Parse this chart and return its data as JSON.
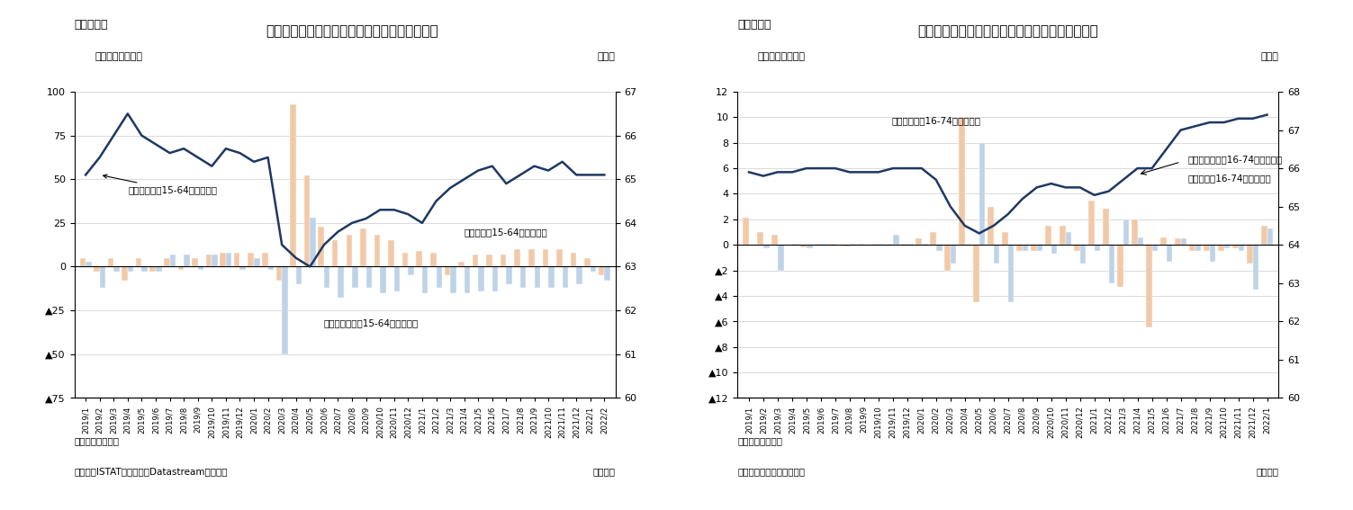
{
  "fig7": {
    "title": "イタリアの失業者・非労働力人口・労働参加率",
    "suptitle": "（図表７）",
    "ylabel_left": "（前月差、万人）",
    "ylabel_right": "（％）",
    "note1": "（注）季節調整値",
    "note2": "（資料）ISTATのデータをDatastreamより取得",
    "note3": "（月次）",
    "ylim_left": [
      -75,
      100
    ],
    "ylim_right": [
      60,
      67
    ],
    "yticks_left": [
      -75,
      -50,
      -25,
      0,
      25,
      50,
      75,
      100
    ],
    "yticks_right": [
      60,
      61,
      62,
      63,
      64,
      65,
      66,
      67
    ],
    "dates": [
      "2019/1",
      "2019/2",
      "2019/3",
      "2019/4",
      "2019/5",
      "2019/6",
      "2019/7",
      "2019/8",
      "2019/9",
      "2019/10",
      "2019/11",
      "2019/12",
      "2020/1",
      "2020/2",
      "2020/3",
      "2020/4",
      "2020/5",
      "2020/6",
      "2020/7",
      "2020/8",
      "2020/9",
      "2020/10",
      "2020/11",
      "2020/12",
      "2021/1",
      "2021/2",
      "2021/3",
      "2021/4",
      "2021/5",
      "2021/6",
      "2021/7",
      "2021/8",
      "2021/9",
      "2021/10",
      "2021/11",
      "2021/12",
      "2022/1",
      "2022/2"
    ],
    "unemployed": [
      5,
      -3,
      5,
      -8,
      5,
      -3,
      5,
      -2,
      5,
      7,
      8,
      8,
      8,
      8,
      -8,
      93,
      52,
      23,
      15,
      18,
      22,
      18,
      15,
      8,
      9,
      8,
      -5,
      3,
      7,
      7,
      7,
      10,
      10,
      10,
      10,
      8,
      5,
      -5
    ],
    "inactive": [
      3,
      -12,
      -3,
      -3,
      -3,
      -3,
      7,
      7,
      -2,
      7,
      8,
      -2,
      5,
      -2,
      -50,
      -10,
      28,
      -12,
      -18,
      -12,
      -12,
      -15,
      -14,
      -5,
      -15,
      -12,
      -15,
      -15,
      -14,
      -14,
      -10,
      -12,
      -12,
      -12,
      -12,
      -10,
      -3,
      -8
    ],
    "participation": [
      65.1,
      65.5,
      66.0,
      66.5,
      66.0,
      65.8,
      65.6,
      65.7,
      65.5,
      65.3,
      65.7,
      65.6,
      65.4,
      65.5,
      63.5,
      63.2,
      63.0,
      63.5,
      63.8,
      64.0,
      64.1,
      64.3,
      64.3,
      64.2,
      64.0,
      64.5,
      64.8,
      65.0,
      65.2,
      65.3,
      64.9,
      65.1,
      65.3,
      65.2,
      65.4,
      65.1,
      65.1,
      65.1
    ],
    "bar_color_unemployed": "#f2c9a8",
    "bar_color_inactive": "#bed3e8",
    "line_color": "#1f3864",
    "label_unemployed": "失業者数（15-64才）の変化",
    "label_inactive": "非労働者人口（15-64才）の変化",
    "label_participation": "労働参加率（15-64才、右軸）",
    "label_participation_arrow_xi": 1,
    "label_participation_arrow_yi": 0,
    "label_unemployed_xi": 27,
    "label_unemployed_yi": 18,
    "label_inactive_xi": 18,
    "label_inactive_yi": -34
  },
  "fig8": {
    "title": "ポルトガルの失業者・非労働力人口・労働参加率",
    "suptitle": "（図表８）",
    "ylabel_left": "（前月差、万人）",
    "ylabel_right": "（％）",
    "note1": "（注）季節調整値",
    "note2": "（資料）ポルトガル統計局",
    "note3": "（月次）",
    "ylim_left": [
      -12,
      12
    ],
    "ylim_right": [
      60,
      68
    ],
    "yticks_left": [
      -12,
      -10,
      -8,
      -6,
      -4,
      -2,
      0,
      2,
      4,
      6,
      8,
      10,
      12
    ],
    "yticks_right": [
      60,
      61,
      62,
      63,
      64,
      65,
      66,
      67,
      68
    ],
    "dates": [
      "2019/1",
      "2019/2",
      "2019/3",
      "2019/4",
      "2019/5",
      "2019/6",
      "2019/7",
      "2019/8",
      "2019/9",
      "2019/10",
      "2019/11",
      "2019/12",
      "2020/1",
      "2020/2",
      "2020/3",
      "2020/4",
      "2020/5",
      "2020/6",
      "2020/7",
      "2020/8",
      "2020/9",
      "2020/10",
      "2020/11",
      "2020/12",
      "2021/1",
      "2021/2",
      "2021/3",
      "2021/4",
      "2021/5",
      "2021/6",
      "2021/7",
      "2021/8",
      "2021/9",
      "2021/10",
      "2021/11",
      "2021/12",
      "2022/1"
    ],
    "unemployed": [
      2.1,
      1.0,
      0.8,
      0.0,
      -0.2,
      0.1,
      0.1,
      -0.1,
      0.1,
      0.1,
      0.1,
      0.1,
      0.5,
      1.0,
      -2.0,
      10.0,
      -4.5,
      3.0,
      1.0,
      -0.5,
      -0.5,
      1.5,
      1.5,
      -0.5,
      3.5,
      2.8,
      -3.3,
      2.0,
      -6.5,
      0.6,
      0.5,
      -0.5,
      -0.5,
      -0.5,
      -0.3,
      -1.5,
      1.5
    ],
    "inactive": [
      0.0,
      -0.3,
      -2.0,
      0.1,
      -0.3,
      0.1,
      0.0,
      0.1,
      0.0,
      0.1,
      0.8,
      0.1,
      0.1,
      -0.5,
      -1.5,
      0.0,
      8.0,
      -1.5,
      -4.5,
      -0.5,
      -0.5,
      -0.7,
      1.0,
      -1.5,
      -0.5,
      -3.0,
      2.0,
      0.6,
      -0.5,
      -1.3,
      0.5,
      -0.5,
      -1.3,
      -0.3,
      -0.5,
      -3.5,
      1.3
    ],
    "participation": [
      65.9,
      65.8,
      65.9,
      65.9,
      66.0,
      66.0,
      66.0,
      65.9,
      65.9,
      65.9,
      66.0,
      66.0,
      66.0,
      65.7,
      65.0,
      64.5,
      64.3,
      64.5,
      64.8,
      65.2,
      65.5,
      65.6,
      65.5,
      65.5,
      65.3,
      65.4,
      65.7,
      66.0,
      66.0,
      66.5,
      67.0,
      67.1,
      67.2,
      67.2,
      67.3,
      67.3,
      67.4
    ],
    "bar_color_unemployed": "#f2c9a8",
    "bar_color_inactive": "#bed3e8",
    "line_color": "#1f3864",
    "label_unemployed": "失業者数（16-74才）の変化",
    "label_inactive": "非労働者人口（16-74才）の変化",
    "label_participation": "労働参加率（16-74才、右軸）"
  }
}
